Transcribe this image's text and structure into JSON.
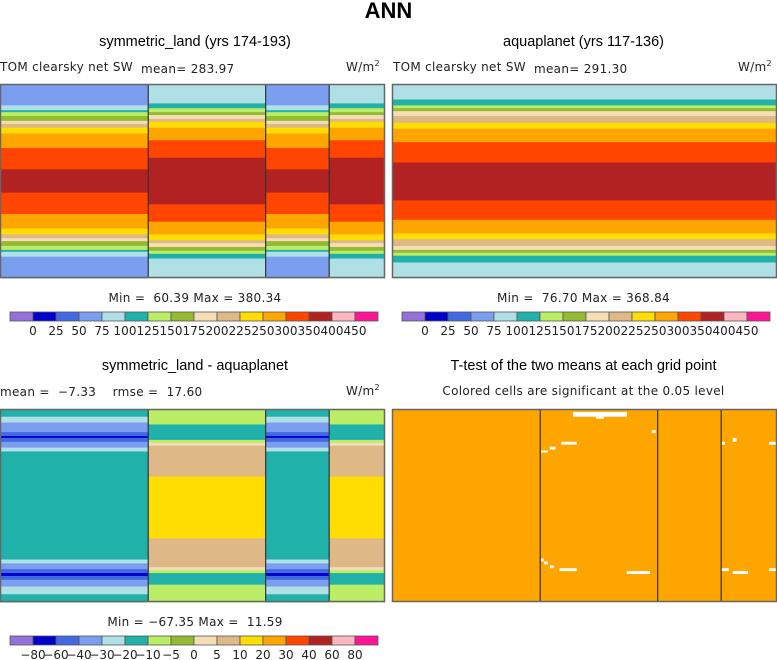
{
  "figure_title": "ANN",
  "panels": [
    {
      "title": "symmetric_land (yrs 174-193)",
      "variable_label": "TOM clearsky net SW",
      "stat_label": "mean= 283.97",
      "units": "W/m",
      "units_sup": "2",
      "minmax": "Min =  60.39 Max = 380.34"
    },
    {
      "title": "aquaplanet (yrs 117-136)",
      "variable_label": "TOM clearsky net SW",
      "stat_label": "mean= 291.30",
      "units": "W/m",
      "units_sup": "2",
      "minmax": "Min =  76.70 Max = 368.84"
    },
    {
      "title": "symmetric_land - aquaplanet",
      "stat_label": "mean =  −7.33    rmse =  17.60",
      "units": "W/m",
      "units_sup": "2",
      "minmax": "Min = −67.35 Max =  11.59"
    },
    {
      "title": "T-test of the two means at each grid point",
      "subtitle": "Colored cells are significant at the 0.05 level"
    }
  ],
  "chart_data": [
    {
      "type": "heatmap",
      "title": "symmetric_land (yrs 174-193)",
      "variable": "TOM clearsky net SW",
      "units": "W/m2",
      "mean": 283.97,
      "min": 60.39,
      "max": 380.34,
      "colorbar": {
        "levels": [
          "0",
          "25",
          "50",
          "75",
          "100",
          "125",
          "150",
          "175",
          "200",
          "225",
          "250",
          "300",
          "350",
          "400",
          "450"
        ],
        "colors": [
          "#9370db",
          "#0000cd",
          "#4169e1",
          "#7b9ef0",
          "#b0e0e6",
          "#20b2aa",
          "#bbee66",
          "#94bb33",
          "#f5deb3",
          "#deb887",
          "#ffdd00",
          "#ffa500",
          "#ff4500",
          "#b22222",
          "#ffb6c1",
          "#ff1493"
        ]
      },
      "regions": [
        {
          "name": "ocean",
          "lon_fraction": [
            0.0,
            0.385
          ]
        },
        {
          "name": "land",
          "lon_fraction": [
            0.385,
            0.69
          ]
        },
        {
          "name": "ocean",
          "lon_fraction": [
            0.69,
            0.855
          ]
        },
        {
          "name": "land",
          "lon_fraction": [
            0.855,
            1.0
          ]
        }
      ],
      "ocean_profile": [
        {
          "value_class": 3,
          "lat_extent": [
            0.0,
            0.11
          ]
        },
        {
          "value_class": 4,
          "lat_extent": [
            0.11,
            0.135
          ]
        },
        {
          "value_class": 5,
          "lat_extent": [
            0.135,
            0.145
          ]
        },
        {
          "value_class": 6,
          "lat_extent": [
            0.145,
            0.165
          ]
        },
        {
          "value_class": 7,
          "lat_extent": [
            0.165,
            0.19
          ]
        },
        {
          "value_class": 8,
          "lat_extent": [
            0.19,
            0.205
          ]
        },
        {
          "value_class": 9,
          "lat_extent": [
            0.205,
            0.225
          ]
        },
        {
          "value_class": 10,
          "lat_extent": [
            0.225,
            0.255
          ]
        },
        {
          "value_class": 11,
          "lat_extent": [
            0.255,
            0.33
          ]
        },
        {
          "value_class": 12,
          "lat_extent": [
            0.33,
            0.44
          ]
        },
        {
          "value_class": 13,
          "lat_extent": [
            0.44,
            0.56
          ]
        },
        {
          "value_class": 12,
          "lat_extent": [
            0.56,
            0.67
          ]
        },
        {
          "value_class": 11,
          "lat_extent": [
            0.67,
            0.745
          ]
        },
        {
          "value_class": 10,
          "lat_extent": [
            0.745,
            0.775
          ]
        },
        {
          "value_class": 9,
          "lat_extent": [
            0.775,
            0.795
          ]
        },
        {
          "value_class": 8,
          "lat_extent": [
            0.795,
            0.81
          ]
        },
        {
          "value_class": 7,
          "lat_extent": [
            0.81,
            0.835
          ]
        },
        {
          "value_class": 6,
          "lat_extent": [
            0.835,
            0.855
          ]
        },
        {
          "value_class": 5,
          "lat_extent": [
            0.855,
            0.865
          ]
        },
        {
          "value_class": 4,
          "lat_extent": [
            0.865,
            0.89
          ]
        },
        {
          "value_class": 3,
          "lat_extent": [
            0.89,
            1.0
          ]
        }
      ],
      "land_profile": [
        {
          "value_class": 4,
          "lat_extent": [
            0.0,
            0.1
          ]
        },
        {
          "value_class": 5,
          "lat_extent": [
            0.1,
            0.125
          ]
        },
        {
          "value_class": 6,
          "lat_extent": [
            0.125,
            0.145
          ]
        },
        {
          "value_class": 7,
          "lat_extent": [
            0.145,
            0.16
          ]
        },
        {
          "value_class": 8,
          "lat_extent": [
            0.16,
            0.18
          ]
        },
        {
          "value_class": 9,
          "lat_extent": [
            0.18,
            0.195
          ]
        },
        {
          "value_class": 10,
          "lat_extent": [
            0.195,
            0.225
          ]
        },
        {
          "value_class": 11,
          "lat_extent": [
            0.225,
            0.29
          ]
        },
        {
          "value_class": 12,
          "lat_extent": [
            0.29,
            0.38
          ]
        },
        {
          "value_class": 13,
          "lat_extent": [
            0.38,
            0.62
          ]
        },
        {
          "value_class": 12,
          "lat_extent": [
            0.62,
            0.71
          ]
        },
        {
          "value_class": 11,
          "lat_extent": [
            0.71,
            0.775
          ]
        },
        {
          "value_class": 10,
          "lat_extent": [
            0.775,
            0.805
          ]
        },
        {
          "value_class": 9,
          "lat_extent": [
            0.805,
            0.82
          ]
        },
        {
          "value_class": 8,
          "lat_extent": [
            0.82,
            0.84
          ]
        },
        {
          "value_class": 7,
          "lat_extent": [
            0.84,
            0.86
          ]
        },
        {
          "value_class": 6,
          "lat_extent": [
            0.86,
            0.875
          ]
        },
        {
          "value_class": 5,
          "lat_extent": [
            0.875,
            0.9
          ]
        },
        {
          "value_class": 4,
          "lat_extent": [
            0.9,
            1.0
          ]
        }
      ]
    },
    {
      "type": "heatmap",
      "title": "aquaplanet (yrs 117-136)",
      "variable": "TOM clearsky net SW",
      "units": "W/m2",
      "mean": 291.3,
      "min": 76.7,
      "max": 368.84,
      "colorbar": {
        "levels": [
          "0",
          "25",
          "50",
          "75",
          "100",
          "125",
          "150",
          "175",
          "200",
          "225",
          "250",
          "300",
          "350",
          "400",
          "450"
        ],
        "colors": [
          "#9370db",
          "#0000cd",
          "#4169e1",
          "#7b9ef0",
          "#b0e0e6",
          "#20b2aa",
          "#bbee66",
          "#94bb33",
          "#f5deb3",
          "#deb887",
          "#ffdd00",
          "#ffa500",
          "#ff4500",
          "#b22222",
          "#ffb6c1",
          "#ff1493"
        ]
      },
      "regions": [
        {
          "name": "ocean",
          "lon_fraction": [
            0.0,
            1.0
          ]
        }
      ],
      "ocean_profile": [
        {
          "value_class": 4,
          "lat_extent": [
            0.0,
            0.08
          ]
        },
        {
          "value_class": 5,
          "lat_extent": [
            0.08,
            0.11
          ]
        },
        {
          "value_class": 6,
          "lat_extent": [
            0.11,
            0.125
          ]
        },
        {
          "value_class": 7,
          "lat_extent": [
            0.125,
            0.14
          ]
        },
        {
          "value_class": 8,
          "lat_extent": [
            0.14,
            0.165
          ]
        },
        {
          "value_class": 9,
          "lat_extent": [
            0.165,
            0.2
          ]
        },
        {
          "value_class": 10,
          "lat_extent": [
            0.2,
            0.23
          ]
        },
        {
          "value_class": 11,
          "lat_extent": [
            0.23,
            0.3
          ]
        },
        {
          "value_class": 12,
          "lat_extent": [
            0.3,
            0.405
          ]
        },
        {
          "value_class": 13,
          "lat_extent": [
            0.405,
            0.6
          ]
        },
        {
          "value_class": 12,
          "lat_extent": [
            0.6,
            0.7
          ]
        },
        {
          "value_class": 11,
          "lat_extent": [
            0.7,
            0.77
          ]
        },
        {
          "value_class": 10,
          "lat_extent": [
            0.77,
            0.8
          ]
        },
        {
          "value_class": 9,
          "lat_extent": [
            0.8,
            0.835
          ]
        },
        {
          "value_class": 8,
          "lat_extent": [
            0.835,
            0.855
          ]
        },
        {
          "value_class": 7,
          "lat_extent": [
            0.855,
            0.87
          ]
        },
        {
          "value_class": 6,
          "lat_extent": [
            0.87,
            0.885
          ]
        },
        {
          "value_class": 5,
          "lat_extent": [
            0.885,
            0.92
          ]
        },
        {
          "value_class": 4,
          "lat_extent": [
            0.92,
            1.0
          ]
        }
      ]
    },
    {
      "type": "heatmap",
      "title": "symmetric_land - aquaplanet",
      "units": "W/m2",
      "mean": -7.33,
      "rmse": 17.6,
      "min": -67.35,
      "max": 11.59,
      "colorbar": {
        "levels": [
          "-80",
          "-60",
          "-40",
          "-30",
          "-20",
          "-10",
          "-5",
          "0",
          "5",
          "10",
          "20",
          "30",
          "40",
          "60",
          "80"
        ],
        "colors": [
          "#9370db",
          "#0000cd",
          "#4169e1",
          "#7b9ef0",
          "#b0e0e6",
          "#20b2aa",
          "#bbee66",
          "#94bb33",
          "#f5deb3",
          "#deb887",
          "#ffdd00",
          "#ffa500",
          "#ff4500",
          "#b22222",
          "#ffb6c1",
          "#ff1493"
        ]
      },
      "regions": [
        {
          "name": "ocean",
          "lon_fraction": [
            0.0,
            0.385
          ]
        },
        {
          "name": "land",
          "lon_fraction": [
            0.385,
            0.69
          ]
        },
        {
          "name": "ocean",
          "lon_fraction": [
            0.69,
            0.855
          ]
        },
        {
          "name": "land",
          "lon_fraction": [
            0.855,
            1.0
          ]
        }
      ],
      "ocean_profile": [
        {
          "value_class": 5,
          "lat_extent": [
            0.0,
            0.04
          ]
        },
        {
          "value_class": 4,
          "lat_extent": [
            0.04,
            0.07
          ]
        },
        {
          "value_class": 3,
          "lat_extent": [
            0.07,
            0.12
          ]
        },
        {
          "value_class": 2,
          "lat_extent": [
            0.12,
            0.14
          ]
        },
        {
          "value_class": 1,
          "lat_extent": [
            0.14,
            0.15
          ]
        },
        {
          "value_class": 2,
          "lat_extent": [
            0.15,
            0.17
          ]
        },
        {
          "value_class": 3,
          "lat_extent": [
            0.17,
            0.2
          ]
        },
        {
          "value_class": 4,
          "lat_extent": [
            0.2,
            0.22
          ]
        },
        {
          "value_class": 5,
          "lat_extent": [
            0.22,
            0.78
          ]
        },
        {
          "value_class": 4,
          "lat_extent": [
            0.78,
            0.8
          ]
        },
        {
          "value_class": 3,
          "lat_extent": [
            0.8,
            0.83
          ]
        },
        {
          "value_class": 2,
          "lat_extent": [
            0.83,
            0.85
          ]
        },
        {
          "value_class": 1,
          "lat_extent": [
            0.85,
            0.865
          ]
        },
        {
          "value_class": 2,
          "lat_extent": [
            0.865,
            0.885
          ]
        },
        {
          "value_class": 3,
          "lat_extent": [
            0.885,
            0.92
          ]
        },
        {
          "value_class": 4,
          "lat_extent": [
            0.92,
            0.96
          ]
        },
        {
          "value_class": 5,
          "lat_extent": [
            0.96,
            1.0
          ]
        }
      ],
      "land_profile": [
        {
          "value_class": 6,
          "lat_extent": [
            0.0,
            0.08
          ]
        },
        {
          "value_class": 5,
          "lat_extent": [
            0.08,
            0.16
          ]
        },
        {
          "value_class": 6,
          "lat_extent": [
            0.16,
            0.175
          ]
        },
        {
          "value_class": 8,
          "lat_extent": [
            0.175,
            0.19
          ]
        },
        {
          "value_class": 9,
          "lat_extent": [
            0.19,
            0.35
          ]
        },
        {
          "value_class": 10,
          "lat_extent": [
            0.35,
            0.67
          ]
        },
        {
          "value_class": 9,
          "lat_extent": [
            0.67,
            0.82
          ]
        },
        {
          "value_class": 8,
          "lat_extent": [
            0.82,
            0.835
          ]
        },
        {
          "value_class": 6,
          "lat_extent": [
            0.835,
            0.85
          ]
        },
        {
          "value_class": 5,
          "lat_extent": [
            0.85,
            0.91
          ]
        },
        {
          "value_class": 6,
          "lat_extent": [
            0.91,
            1.0
          ]
        }
      ]
    },
    {
      "type": "heatmap",
      "title": "T-test of the two means at each grid point",
      "subtitle": "Colored cells are significant at the 0.05 level",
      "significant_color": "#ffa500",
      "insignificant_color": "#ffffff",
      "regions": [
        {
          "name": "ocean",
          "lon_fraction": [
            0.0,
            0.385
          ]
        },
        {
          "name": "land",
          "lon_fraction": [
            0.385,
            0.69
          ]
        },
        {
          "name": "ocean",
          "lon_fraction": [
            0.69,
            0.855
          ]
        },
        {
          "name": "land",
          "lon_fraction": [
            0.855,
            1.0
          ]
        }
      ],
      "insignificant_cells": [
        {
          "lon": [
            0.47,
            0.61
          ],
          "lat": [
            0.015,
            0.04
          ]
        },
        {
          "lon": [
            0.53,
            0.55
          ],
          "lat": [
            0.04,
            0.05
          ]
        },
        {
          "lon": [
            0.675,
            0.685
          ],
          "lat": [
            0.11,
            0.125
          ]
        },
        {
          "lon": [
            0.44,
            0.48
          ],
          "lat": [
            0.17,
            0.185
          ]
        },
        {
          "lon": [
            0.41,
            0.425
          ],
          "lat": [
            0.195,
            0.21
          ]
        },
        {
          "lon": [
            0.385,
            0.405
          ],
          "lat": [
            0.215,
            0.225
          ]
        },
        {
          "lon": [
            0.885,
            0.895
          ],
          "lat": [
            0.15,
            0.17
          ]
        },
        {
          "lon": [
            0.855,
            0.865
          ],
          "lat": [
            0.17,
            0.185
          ]
        },
        {
          "lon": [
            0.98,
            1.0
          ],
          "lat": [
            0.17,
            0.185
          ]
        },
        {
          "lon": [
            0.385,
            0.395
          ],
          "lat": [
            0.775,
            0.79
          ]
        },
        {
          "lon": [
            0.395,
            0.405
          ],
          "lat": [
            0.79,
            0.805
          ]
        },
        {
          "lon": [
            0.41,
            0.42
          ],
          "lat": [
            0.81,
            0.825
          ]
        },
        {
          "lon": [
            0.435,
            0.48
          ],
          "lat": [
            0.825,
            0.84
          ]
        },
        {
          "lon": [
            0.61,
            0.67
          ],
          "lat": [
            0.84,
            0.855
          ]
        },
        {
          "lon": [
            0.855,
            0.875
          ],
          "lat": [
            0.825,
            0.84
          ]
        },
        {
          "lon": [
            0.885,
            0.925
          ],
          "lat": [
            0.84,
            0.855
          ]
        },
        {
          "lon": [
            0.98,
            1.0
          ],
          "lat": [
            0.825,
            0.84
          ]
        }
      ]
    }
  ]
}
